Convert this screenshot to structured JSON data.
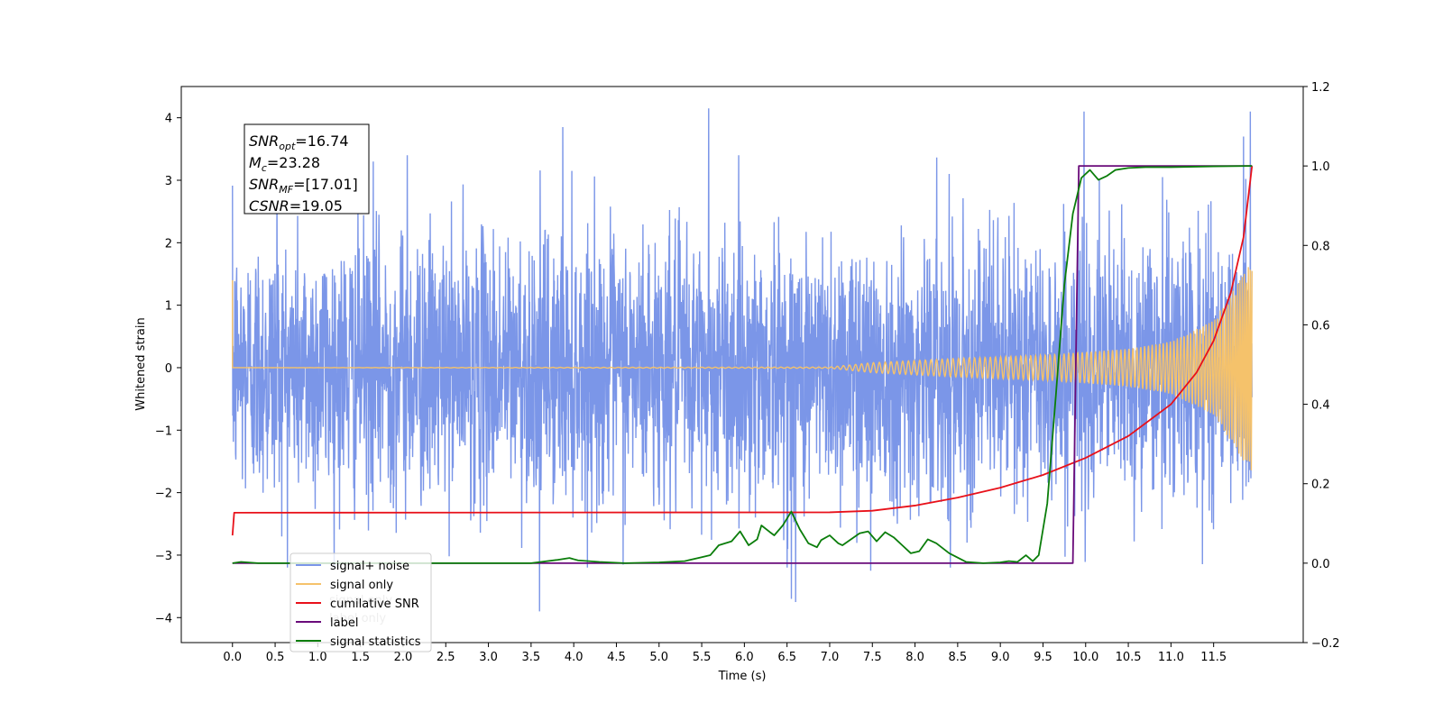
{
  "chart_data": {
    "type": "line",
    "xlabel": "Time (s)",
    "ylabel_left": "Whitened strain",
    "ylabel_right": "",
    "xlim": [
      -0.6,
      12.55
    ],
    "ylim_left": [
      -4.4,
      4.5
    ],
    "ylim_right": [
      -0.2,
      1.2
    ],
    "x_ticks": [
      0.0,
      0.5,
      1.0,
      1.5,
      2.0,
      2.5,
      3.0,
      3.5,
      4.0,
      4.5,
      5.0,
      5.5,
      6.0,
      6.5,
      7.0,
      7.5,
      8.0,
      8.5,
      9.0,
      9.5,
      10.0,
      10.5,
      11.0,
      11.5
    ],
    "x_tick_labels": [
      "0.0",
      "0.5",
      "1.0",
      "1.5",
      "2.0",
      "2.5",
      "3.0",
      "3.5",
      "4.0",
      "4.5",
      "5.0",
      "5.5",
      "6.0",
      "6.5",
      "7.0",
      "7.5",
      "8.0",
      "8.5",
      "9.0",
      "9.5",
      "10.0",
      "10.5",
      "11.0",
      "11.5"
    ],
    "y_ticks_left": [
      -4,
      -3,
      -2,
      -1,
      0,
      1,
      2,
      3,
      4
    ],
    "y_tick_labels_left": [
      "−4",
      "−3",
      "−2",
      "−1",
      "0",
      "1",
      "2",
      "3",
      "4"
    ],
    "y_ticks_right": [
      -0.2,
      0.0,
      0.2,
      0.4,
      0.6,
      0.8,
      1.0,
      1.2
    ],
    "y_tick_labels_right": [
      "−0.2",
      "0.0",
      "0.2",
      "0.4",
      "0.6",
      "0.8",
      "1.0",
      "1.2"
    ],
    "grid": false,
    "legend_position": "lower-left",
    "annotation_box": {
      "lines": [
        {
          "sym": "SNR",
          "sub": "opt",
          "value": "=16.74"
        },
        {
          "sym": "M",
          "sub": "c",
          "value": "=23.28"
        },
        {
          "sym": "SNR",
          "sub": "MF",
          "value": "=[17.01]"
        },
        {
          "sym": "CSNR",
          "sub": "",
          "value": "=19.05"
        }
      ]
    },
    "series": [
      {
        "name": "signal+ noise",
        "axis": "left",
        "color": "#7b96e8",
        "kind": "noise",
        "x_range": [
          0.0,
          11.95
        ],
        "envelope_std": 1.05,
        "spikes": [
          {
            "x": 5.58,
            "y": 4.15
          },
          {
            "x": 3.87,
            "y": 3.85
          },
          {
            "x": 9.98,
            "y": 4.1
          },
          {
            "x": 11.93,
            "y": 4.1
          },
          {
            "x": 11.85,
            "y": 3.7
          },
          {
            "x": 0.52,
            "y": 3.5
          },
          {
            "x": 2.05,
            "y": 3.4
          },
          {
            "x": 3.6,
            "y": -3.9
          },
          {
            "x": 6.55,
            "y": -3.7
          },
          {
            "x": 6.6,
            "y": -3.75
          },
          {
            "x": 7.48,
            "y": -3.25
          },
          {
            "x": 11.85,
            "y": -3.55
          },
          {
            "x": 1.65,
            "y": 3.3
          },
          {
            "x": 8.4,
            "y": 3.1
          },
          {
            "x": 10.9,
            "y": 3.05
          }
        ]
      },
      {
        "name": "signal only",
        "axis": "left",
        "color": "#f5c26b",
        "kind": "chirp",
        "x_range": [
          0.0,
          11.95
        ],
        "amplitude_points": [
          [
            0.0,
            0.0
          ],
          [
            7.0,
            0.01
          ],
          [
            7.5,
            0.08
          ],
          [
            8.5,
            0.15
          ],
          [
            9.5,
            0.2
          ],
          [
            10.5,
            0.3
          ],
          [
            11.0,
            0.42
          ],
          [
            11.5,
            0.75
          ],
          [
            11.95,
            1.7
          ]
        ]
      },
      {
        "name": "cumilative SNR",
        "axis": "right",
        "color": "#e8111a",
        "points": [
          [
            0.0,
            0.07
          ],
          [
            0.02,
            0.127
          ],
          [
            7.0,
            0.128
          ],
          [
            7.5,
            0.132
          ],
          [
            8.0,
            0.145
          ],
          [
            8.5,
            0.165
          ],
          [
            9.0,
            0.19
          ],
          [
            9.5,
            0.222
          ],
          [
            10.0,
            0.265
          ],
          [
            10.5,
            0.32
          ],
          [
            11.0,
            0.4
          ],
          [
            11.3,
            0.48
          ],
          [
            11.5,
            0.56
          ],
          [
            11.7,
            0.68
          ],
          [
            11.85,
            0.82
          ],
          [
            11.95,
            1.0
          ]
        ]
      },
      {
        "name": "label",
        "axis": "right",
        "color": "#6a0b7a",
        "points": [
          [
            0.0,
            0.0
          ],
          [
            9.85,
            0.0
          ],
          [
            9.92,
            1.0
          ],
          [
            11.95,
            1.0
          ]
        ]
      },
      {
        "name": "signal statistics",
        "axis": "right",
        "color": "#0a7d0a",
        "points": [
          [
            0.0,
            0.0
          ],
          [
            0.1,
            0.003
          ],
          [
            0.3,
            0.0
          ],
          [
            3.5,
            0.0
          ],
          [
            3.8,
            0.008
          ],
          [
            3.95,
            0.013
          ],
          [
            4.05,
            0.007
          ],
          [
            4.3,
            0.003
          ],
          [
            4.6,
            0.0
          ],
          [
            5.0,
            0.002
          ],
          [
            5.3,
            0.005
          ],
          [
            5.5,
            0.015
          ],
          [
            5.6,
            0.02
          ],
          [
            5.7,
            0.045
          ],
          [
            5.85,
            0.055
          ],
          [
            5.95,
            0.08
          ],
          [
            6.05,
            0.045
          ],
          [
            6.15,
            0.06
          ],
          [
            6.2,
            0.095
          ],
          [
            6.3,
            0.078
          ],
          [
            6.35,
            0.07
          ],
          [
            6.45,
            0.095
          ],
          [
            6.55,
            0.13
          ],
          [
            6.65,
            0.085
          ],
          [
            6.75,
            0.05
          ],
          [
            6.85,
            0.04
          ],
          [
            6.9,
            0.058
          ],
          [
            7.0,
            0.07
          ],
          [
            7.1,
            0.05
          ],
          [
            7.15,
            0.045
          ],
          [
            7.25,
            0.06
          ],
          [
            7.35,
            0.075
          ],
          [
            7.45,
            0.08
          ],
          [
            7.55,
            0.055
          ],
          [
            7.65,
            0.078
          ],
          [
            7.75,
            0.065
          ],
          [
            7.85,
            0.045
          ],
          [
            7.95,
            0.025
          ],
          [
            8.05,
            0.03
          ],
          [
            8.15,
            0.06
          ],
          [
            8.25,
            0.05
          ],
          [
            8.4,
            0.025
          ],
          [
            8.6,
            0.003
          ],
          [
            8.8,
            0.0
          ],
          [
            9.0,
            0.002
          ],
          [
            9.1,
            0.005
          ],
          [
            9.2,
            0.003
          ],
          [
            9.3,
            0.02
          ],
          [
            9.38,
            0.005
          ],
          [
            9.45,
            0.02
          ],
          [
            9.55,
            0.15
          ],
          [
            9.65,
            0.42
          ],
          [
            9.75,
            0.7
          ],
          [
            9.85,
            0.88
          ],
          [
            9.95,
            0.97
          ],
          [
            10.05,
            0.99
          ],
          [
            10.15,
            0.965
          ],
          [
            10.25,
            0.975
          ],
          [
            10.35,
            0.99
          ],
          [
            10.5,
            0.995
          ],
          [
            10.7,
            0.997
          ],
          [
            11.0,
            0.997
          ],
          [
            11.5,
            0.999
          ],
          [
            11.95,
            1.0
          ]
        ]
      }
    ],
    "legend_entries": [
      "signal+ noise",
      "signal only",
      "cumilative SNR",
      "label",
      "signal statistics"
    ],
    "legend_hidden_text": [
      "signal only",
      "label only"
    ]
  }
}
